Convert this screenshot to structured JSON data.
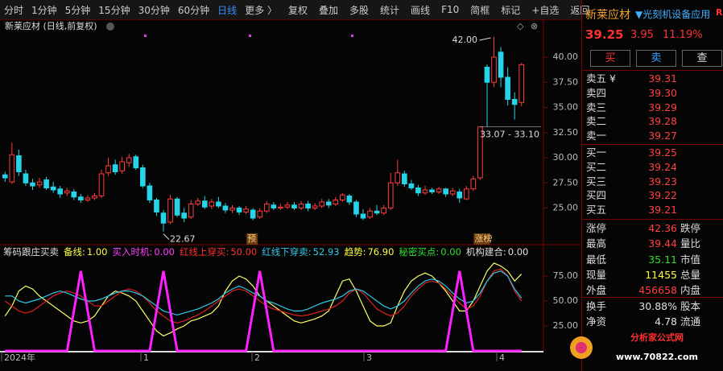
{
  "toolbar": {
    "periods": [
      "分时",
      "1分钟",
      "5分钟",
      "15分钟",
      "30分钟",
      "60分钟",
      "日线",
      "更多 〉"
    ],
    "active": "日线",
    "tools": [
      "复权",
      "叠加",
      "多股",
      "统计",
      "画线",
      "F10",
      "简框",
      "标记",
      "+自选",
      "返回"
    ]
  },
  "chart_data": [
    {
      "type": "candlestick",
      "title": "新莱应材 (日线,前复权)",
      "up_color": "#ff3b3b",
      "down_color": "#25d4e8",
      "ylim": [
        21.68,
        43.44
      ],
      "yticks": [
        {
          "value": 25,
          "label": "25.00"
        },
        {
          "value": 27.5,
          "label": "27.50"
        },
        {
          "value": 30,
          "label": "30.00"
        },
        {
          "value": 32.5,
          "label": "32.50"
        },
        {
          "value": 35,
          "label": "35.00"
        },
        {
          "value": 37.5,
          "label": "37.50"
        },
        {
          "value": 40,
          "label": "40.00"
        }
      ],
      "candles": [
        [
          28.3,
          28.0,
          28.6,
          27.6
        ],
        [
          27.6,
          30.3,
          31.5,
          27.4
        ],
        [
          30.2,
          28.6,
          30.8,
          28.2
        ],
        [
          28.4,
          27.5,
          28.8,
          27.2
        ],
        [
          27.5,
          27.2,
          27.9,
          26.8
        ],
        [
          27.3,
          27.6,
          28.0,
          27.0
        ],
        [
          27.8,
          27.0,
          28.1,
          26.8
        ],
        [
          27.1,
          26.8,
          27.6,
          26.5
        ],
        [
          26.9,
          26.4,
          27.2,
          26.0
        ],
        [
          26.5,
          26.7,
          27.0,
          26.2
        ],
        [
          26.6,
          26.1,
          26.9,
          25.8
        ],
        [
          26.1,
          25.8,
          26.4,
          25.5
        ],
        [
          25.8,
          26.0,
          26.3,
          25.6
        ],
        [
          26.0,
          26.2,
          26.5,
          25.8
        ],
        [
          26.2,
          28.4,
          28.8,
          26.0
        ],
        [
          28.5,
          29.2,
          30.0,
          28.2
        ],
        [
          29.3,
          28.6,
          29.8,
          28.3
        ],
        [
          28.7,
          29.6,
          30.1,
          28.4
        ],
        [
          29.5,
          30.0,
          30.4,
          29.1
        ],
        [
          30.1,
          29.0,
          30.3,
          28.8
        ],
        [
          29.0,
          27.2,
          29.3,
          27.0
        ],
        [
          27.2,
          25.8,
          27.5,
          25.5
        ],
        [
          25.8,
          24.6,
          26.0,
          24.2
        ],
        [
          24.5,
          23.5,
          24.8,
          22.67
        ],
        [
          23.6,
          25.9,
          26.3,
          23.4
        ],
        [
          25.9,
          24.3,
          26.1,
          24.1
        ],
        [
          24.5,
          24.0,
          25.0,
          23.6
        ],
        [
          24.1,
          25.4,
          25.8,
          23.9
        ],
        [
          25.4,
          25.7,
          26.0,
          25.2
        ],
        [
          25.7,
          25.1,
          26.2,
          24.9
        ],
        [
          25.2,
          25.6,
          25.9,
          24.9
        ],
        [
          25.6,
          25.2,
          26.1,
          25.0
        ],
        [
          25.2,
          24.8,
          25.5,
          24.5
        ],
        [
          24.8,
          25.0,
          25.3,
          24.5
        ],
        [
          25.0,
          24.6,
          25.2,
          24.3
        ],
        [
          24.6,
          24.9,
          25.2,
          24.4
        ],
        [
          24.8,
          24.0,
          25.0,
          23.8
        ],
        [
          24.1,
          24.7,
          25.0,
          23.9
        ],
        [
          24.7,
          25.4,
          25.7,
          24.5
        ],
        [
          25.3,
          25.0,
          25.6,
          24.8
        ],
        [
          25.0,
          25.1,
          25.4,
          24.8
        ],
        [
          25.1,
          25.3,
          25.6,
          24.9
        ],
        [
          25.3,
          25.0,
          25.6,
          24.8
        ],
        [
          25.0,
          25.4,
          25.7,
          24.8
        ],
        [
          25.4,
          25.0,
          25.7,
          24.7
        ],
        [
          25.0,
          25.2,
          25.5,
          24.8
        ],
        [
          25.2,
          25.6,
          25.9,
          25.0
        ],
        [
          25.6,
          25.3,
          25.9,
          25.0
        ],
        [
          25.4,
          25.8,
          26.1,
          25.2
        ],
        [
          25.8,
          26.3,
          26.5,
          25.6
        ],
        [
          26.2,
          25.6,
          26.4,
          25.3
        ],
        [
          25.6,
          24.4,
          25.8,
          24.1
        ],
        [
          24.4,
          24.0,
          24.9,
          23.8
        ],
        [
          24.1,
          24.7,
          25.0,
          23.9
        ],
        [
          24.7,
          24.5,
          25.3,
          24.3
        ],
        [
          24.5,
          25.0,
          25.3,
          24.3
        ],
        [
          25.0,
          27.5,
          28.5,
          24.8
        ],
        [
          27.5,
          28.5,
          29.8,
          27.2
        ],
        [
          28.4,
          27.4,
          28.7,
          27.1
        ],
        [
          27.4,
          27.0,
          27.8,
          26.8
        ],
        [
          27.0,
          26.5,
          27.3,
          26.2
        ],
        [
          26.5,
          26.8,
          27.2,
          26.3
        ],
        [
          26.8,
          26.6,
          27.0,
          26.4
        ],
        [
          26.6,
          26.9,
          27.1,
          26.4
        ],
        [
          26.9,
          26.4,
          27.0,
          26.1
        ],
        [
          26.4,
          26.7,
          27.0,
          26.2
        ],
        [
          26.6,
          26.0,
          26.9,
          25.5
        ],
        [
          25.9,
          26.9,
          27.2,
          25.8
        ],
        [
          26.9,
          27.9,
          28.2,
          26.7
        ],
        [
          28.0,
          33.07,
          33.07,
          27.8
        ],
        [
          39.0,
          37.5,
          39.3,
          33.1
        ],
        [
          37.5,
          40.0,
          42.0,
          37.0
        ],
        [
          40.5,
          38.0,
          41.0,
          37.0
        ],
        [
          38.0,
          35.8,
          39.0,
          35.2
        ],
        [
          35.8,
          35.3,
          36.5,
          33.8
        ],
        [
          35.5,
          39.25,
          39.44,
          35.11
        ]
      ],
      "annotations": {
        "high": {
          "value": 42,
          "label": "42.00"
        },
        "low": {
          "value": 22.67,
          "label": "22.67"
        },
        "gap": "33.07 - 33.10"
      },
      "markers": [
        "预",
        "涨榜"
      ],
      "x_labels": [
        "2024年",
        "1",
        "2",
        "3",
        "4"
      ]
    },
    {
      "type": "line",
      "title": "筹码跟庄买卖",
      "readouts": [
        {
          "label": "备线:",
          "value": "1.00",
          "color": "#ffff40"
        },
        {
          "label": "买入时机:",
          "value": "0.00",
          "color": "#ff40ff"
        },
        {
          "label": "红线上穿买:",
          "value": "50.00",
          "color": "#ff3030"
        },
        {
          "label": "红线下穿卖:",
          "value": "52.93",
          "color": "#30c8e8"
        },
        {
          "label": "趋势:",
          "value": "76.90",
          "color": "#ffff40"
        },
        {
          "label": "秘密买点:",
          "value": "0.00",
          "color": "#30e030"
        },
        {
          "label": "机构建合:",
          "value": "0.00",
          "color": "#e0e0e0"
        }
      ],
      "ylim": [
        0,
        100
      ],
      "yticks": [
        {
          "value": 25,
          "label": "25.00"
        },
        {
          "value": 50,
          "label": "50.00"
        },
        {
          "value": 75,
          "label": "75.00"
        }
      ],
      "series": [
        {
          "color": "#ffff66",
          "width": 1.2,
          "values": [
            35,
            45,
            60,
            65,
            62,
            55,
            50,
            45,
            40,
            35,
            30,
            28,
            30,
            35,
            45,
            55,
            60,
            58,
            55,
            50,
            40,
            30,
            20,
            15,
            18,
            22,
            25,
            30,
            32,
            35,
            38,
            45,
            60,
            70,
            75,
            72,
            65,
            55,
            50,
            45,
            40,
            35,
            30,
            28,
            30,
            32,
            35,
            40,
            55,
            70,
            72,
            60,
            45,
            30,
            25,
            25,
            28,
            45,
            60,
            70,
            75,
            78,
            75,
            68,
            60,
            50,
            40,
            40,
            50,
            65,
            80,
            88,
            85,
            80,
            70,
            76.9
          ]
        },
        {
          "color": "#e02020",
          "width": 1.2,
          "values": [
            50,
            45,
            40,
            38,
            40,
            45,
            50,
            55,
            58,
            60,
            58,
            55,
            50,
            45,
            45,
            50,
            55,
            60,
            62,
            60,
            55,
            48,
            40,
            35,
            30,
            28,
            30,
            33,
            36,
            40,
            45,
            50,
            55,
            60,
            62,
            60,
            55,
            50,
            45,
            42,
            40,
            38,
            36,
            35,
            36,
            38,
            40,
            42,
            45,
            50,
            58,
            62,
            58,
            50,
            42,
            38,
            35,
            38,
            45,
            55,
            62,
            68,
            70,
            68,
            62,
            55,
            48,
            42,
            45,
            55,
            70,
            80,
            82,
            75,
            60,
            50
          ]
        },
        {
          "color": "#30c8e8",
          "width": 1.2,
          "values": [
            55,
            55,
            50,
            48,
            50,
            52,
            55,
            58,
            60,
            58,
            55,
            52,
            50,
            50,
            52,
            55,
            58,
            60,
            60,
            58,
            55,
            50,
            45,
            40,
            38,
            36,
            38,
            40,
            42,
            45,
            48,
            52,
            58,
            62,
            65,
            62,
            58,
            55,
            50,
            48,
            45,
            42,
            40,
            40,
            42,
            45,
            48,
            50,
            52,
            55,
            60,
            62,
            60,
            55,
            50,
            45,
            42,
            45,
            50,
            58,
            65,
            70,
            72,
            70,
            65,
            58,
            52,
            48,
            50,
            58,
            70,
            78,
            80,
            75,
            62,
            52.93
          ]
        },
        {
          "color": "#ff20ff",
          "width": 3,
          "values": [
            0,
            0,
            0,
            0,
            0,
            0,
            0,
            0,
            0,
            0,
            40,
            80,
            40,
            0,
            0,
            0,
            0,
            0,
            0,
            0,
            0,
            0,
            40,
            80,
            40,
            0,
            0,
            0,
            0,
            0,
            0,
            0,
            0,
            0,
            0,
            0,
            40,
            80,
            40,
            0,
            0,
            0,
            0,
            0,
            0,
            0,
            0,
            0,
            0,
            0,
            0,
            0,
            0,
            0,
            0,
            0,
            0,
            0,
            0,
            0,
            0,
            0,
            0,
            0,
            0,
            40,
            80,
            40,
            0,
            0,
            0,
            0,
            0,
            0,
            0,
            0
          ]
        }
      ]
    }
  ],
  "quote": {
    "name": "新莱应材",
    "sector": "▼光刻机设备应用",
    "flag": "R",
    "price": "39.25",
    "change": "3.95",
    "pct": "11.19%",
    "buttons": [
      "买",
      "卖",
      "查"
    ]
  },
  "order_book": {
    "asks": [
      {
        "label": "卖五 ¥",
        "price": "39.31"
      },
      {
        "label": "卖四",
        "price": "39.30"
      },
      {
        "label": "卖三",
        "price": "39.29"
      },
      {
        "label": "卖二",
        "price": "39.28"
      },
      {
        "label": "卖一",
        "price": "39.27"
      }
    ],
    "bids": [
      {
        "label": "买一",
        "price": "39.25"
      },
      {
        "label": "买二",
        "price": "39.24"
      },
      {
        "label": "买三",
        "price": "39.23"
      },
      {
        "label": "买四",
        "price": "39.22"
      },
      {
        "label": "买五",
        "price": "39.21"
      }
    ]
  },
  "stats": [
    {
      "label": "涨停",
      "value": "42.36",
      "next": "跌停",
      "color": "#ff4040"
    },
    {
      "label": "最高",
      "value": "39.44",
      "next": "量比",
      "color": "#ff4040"
    },
    {
      "label": "最低",
      "value": "35.11",
      "next": "市值",
      "color": "#30e030"
    },
    {
      "label": "现量",
      "value": "11455",
      "next": "总量",
      "color": "#ffff40"
    },
    {
      "label": "外盘",
      "value": "456658",
      "next": "内盘",
      "color": "#ff4040"
    },
    {
      "label": "换手",
      "value": "30.88%",
      "next": "股本",
      "color": "#e0e0e0"
    },
    {
      "label": "净资",
      "value": "4.78",
      "next": "流通",
      "color": "#e0e0e0"
    }
  ],
  "watermark": {
    "name": "分析家公式网",
    "url": "www.70822.com"
  }
}
